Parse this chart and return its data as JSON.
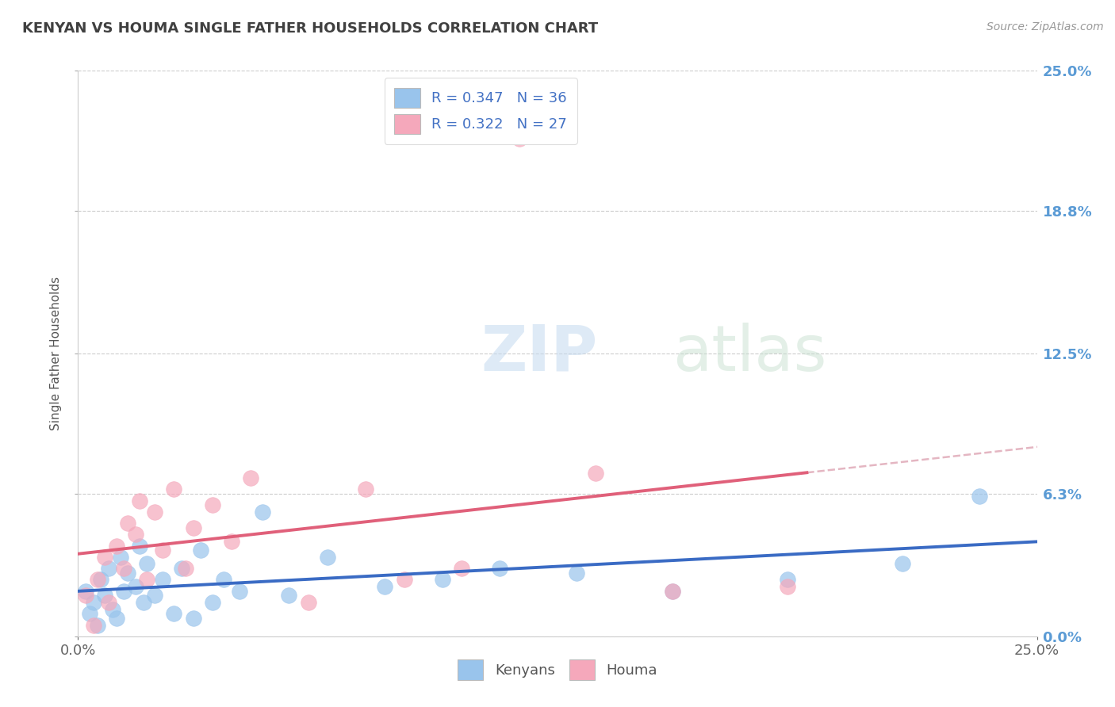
{
  "title": "KENYAN VS HOUMA SINGLE FATHER HOUSEHOLDS CORRELATION CHART",
  "source": "Source: ZipAtlas.com",
  "ylabel": "Single Father Households",
  "xlim": [
    0.0,
    0.25
  ],
  "ylim": [
    0.0,
    0.25
  ],
  "xtick_labels": [
    "0.0%",
    "25.0%"
  ],
  "ytick_labels": [
    "0.0%",
    "6.3%",
    "12.5%",
    "18.8%",
    "25.0%"
  ],
  "ytick_values": [
    0.0,
    0.063,
    0.125,
    0.188,
    0.25
  ],
  "kenyan_color": "#99C4EC",
  "houma_color": "#F5A8BB",
  "kenyan_line_color": "#3A6BC4",
  "houma_line_color": "#E0607A",
  "trend_dash_color": "#E0AAB8",
  "background_color": "#FFFFFF",
  "grid_color": "#CCCCCC",
  "title_color": "#404040",
  "kenyan_scatter_x": [
    0.002,
    0.003,
    0.004,
    0.005,
    0.006,
    0.007,
    0.008,
    0.009,
    0.01,
    0.011,
    0.012,
    0.013,
    0.015,
    0.016,
    0.017,
    0.018,
    0.02,
    0.022,
    0.025,
    0.027,
    0.03,
    0.032,
    0.035,
    0.038,
    0.042,
    0.048,
    0.055,
    0.065,
    0.08,
    0.095,
    0.11,
    0.13,
    0.155,
    0.185,
    0.215,
    0.235
  ],
  "kenyan_scatter_y": [
    0.02,
    0.01,
    0.015,
    0.005,
    0.025,
    0.018,
    0.03,
    0.012,
    0.008,
    0.035,
    0.02,
    0.028,
    0.022,
    0.04,
    0.015,
    0.032,
    0.018,
    0.025,
    0.01,
    0.03,
    0.008,
    0.038,
    0.015,
    0.025,
    0.02,
    0.055,
    0.018,
    0.035,
    0.022,
    0.025,
    0.03,
    0.028,
    0.02,
    0.025,
    0.032,
    0.062
  ],
  "houma_scatter_x": [
    0.002,
    0.004,
    0.005,
    0.007,
    0.008,
    0.01,
    0.012,
    0.013,
    0.015,
    0.016,
    0.018,
    0.02,
    0.022,
    0.025,
    0.028,
    0.03,
    0.035,
    0.04,
    0.045,
    0.06,
    0.075,
    0.085,
    0.1,
    0.115,
    0.135,
    0.155,
    0.185
  ],
  "houma_scatter_y": [
    0.018,
    0.005,
    0.025,
    0.035,
    0.015,
    0.04,
    0.03,
    0.05,
    0.045,
    0.06,
    0.025,
    0.055,
    0.038,
    0.065,
    0.03,
    0.048,
    0.058,
    0.042,
    0.07,
    0.015,
    0.065,
    0.025,
    0.03,
    0.22,
    0.072,
    0.02,
    0.022
  ]
}
